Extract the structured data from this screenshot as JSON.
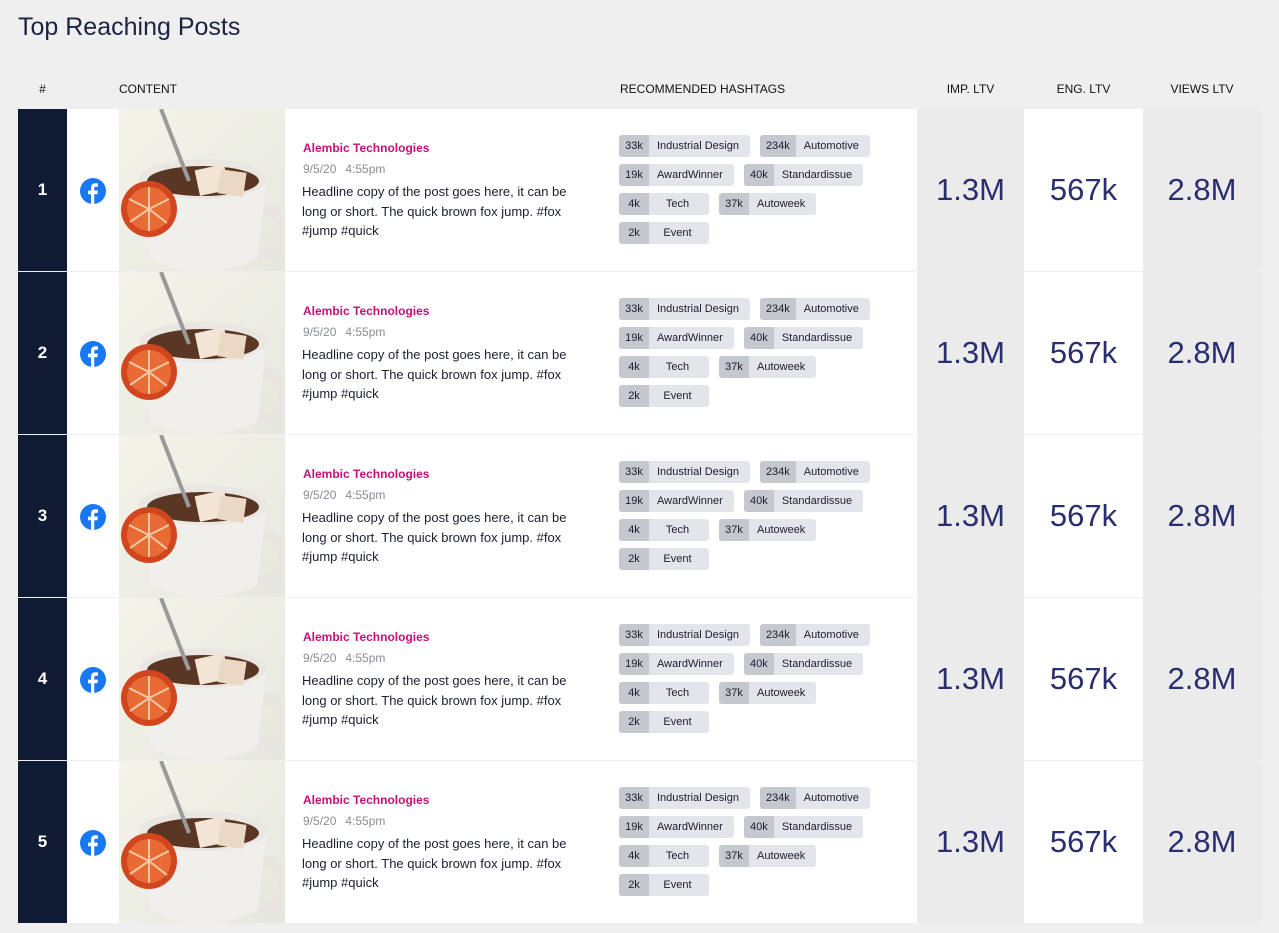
{
  "title": "Top Reaching Posts",
  "table": {
    "headers": [
      "#",
      "CONTENT",
      "RECOMMENDED HASHTAGS",
      "IMP. LTV",
      "ENG. LTV",
      "VIEWS LTV"
    ],
    "rows": [
      {
        "rank": "1",
        "author": "Alembic Technologies",
        "date": "9/5/20",
        "time": "4:55pm",
        "text": "Headline copy of the post goes here, it can be long or short. The quick brown fox jump. #fox #jump #quick",
        "hashtags": [
          {
            "count": "33k",
            "tag": "Industrial Design"
          },
          {
            "count": "234k",
            "tag": "Automotive"
          },
          {
            "count": "19k",
            "tag": "AwardWinner"
          },
          {
            "count": "40k",
            "tag": "Standardissue"
          },
          {
            "count": "4k",
            "tag": "Tech"
          },
          {
            "count": "37k",
            "tag": "Autoweek"
          },
          {
            "count": "2k",
            "tag": "Event"
          }
        ],
        "imp": "1.3M",
        "eng": "567k",
        "views": "2.8M"
      },
      {
        "rank": "2",
        "author": "Alembic Technologies",
        "date": "9/5/20",
        "time": "4:55pm",
        "text": "Headline copy of the post goes here, it can be long or short. The quick brown fox jump. #fox #jump #quick",
        "hashtags": [
          {
            "count": "33k",
            "tag": "Industrial Design"
          },
          {
            "count": "234k",
            "tag": "Automotive"
          },
          {
            "count": "19k",
            "tag": "AwardWinner"
          },
          {
            "count": "40k",
            "tag": "Standardissue"
          },
          {
            "count": "4k",
            "tag": "Tech"
          },
          {
            "count": "37k",
            "tag": "Autoweek"
          },
          {
            "count": "2k",
            "tag": "Event"
          }
        ],
        "imp": "1.3M",
        "eng": "567k",
        "views": "2.8M"
      },
      {
        "rank": "3",
        "author": "Alembic Technologies",
        "date": "9/5/20",
        "time": "4:55pm",
        "text": "Headline copy of the post goes here, it can be long or short. The quick brown fox jump. #fox #jump #quick",
        "hashtags": [
          {
            "count": "33k",
            "tag": "Industrial Design"
          },
          {
            "count": "234k",
            "tag": "Automotive"
          },
          {
            "count": "19k",
            "tag": "AwardWinner"
          },
          {
            "count": "40k",
            "tag": "Standardissue"
          },
          {
            "count": "4k",
            "tag": "Tech"
          },
          {
            "count": "37k",
            "tag": "Autoweek"
          },
          {
            "count": "2k",
            "tag": "Event"
          }
        ],
        "imp": "1.3M",
        "eng": "567k",
        "views": "2.8M"
      },
      {
        "rank": "4",
        "author": "Alembic Technologies",
        "date": "9/5/20",
        "time": "4:55pm",
        "text": "Headline copy of the post goes here, it can be long or short. The quick brown fox jump. #fox #jump #quick",
        "hashtags": [
          {
            "count": "33k",
            "tag": "Industrial Design"
          },
          {
            "count": "234k",
            "tag": "Automotive"
          },
          {
            "count": "19k",
            "tag": "AwardWinner"
          },
          {
            "count": "40k",
            "tag": "Standardissue"
          },
          {
            "count": "4k",
            "tag": "Tech"
          },
          {
            "count": "37k",
            "tag": "Autoweek"
          },
          {
            "count": "2k",
            "tag": "Event"
          }
        ],
        "imp": "1.3M",
        "eng": "567k",
        "views": "2.8M"
      },
      {
        "rank": "5",
        "author": "Alembic Technologies",
        "date": "9/5/20",
        "time": "4:55pm",
        "text": "Headline copy of the post goes here, it can be long or short. The quick brown fox jump. #fox #jump #quick",
        "hashtags": [
          {
            "count": "33k",
            "tag": "Industrial Design"
          },
          {
            "count": "234k",
            "tag": "Automotive"
          },
          {
            "count": "19k",
            "tag": "AwardWinner"
          },
          {
            "count": "40k",
            "tag": "Standardissue"
          },
          {
            "count": "4k",
            "tag": "Tech"
          },
          {
            "count": "37k",
            "tag": "Autoweek"
          },
          {
            "count": "2k",
            "tag": "Event"
          }
        ],
        "imp": "1.3M",
        "eng": "567k",
        "views": "2.8M"
      }
    ]
  }
}
